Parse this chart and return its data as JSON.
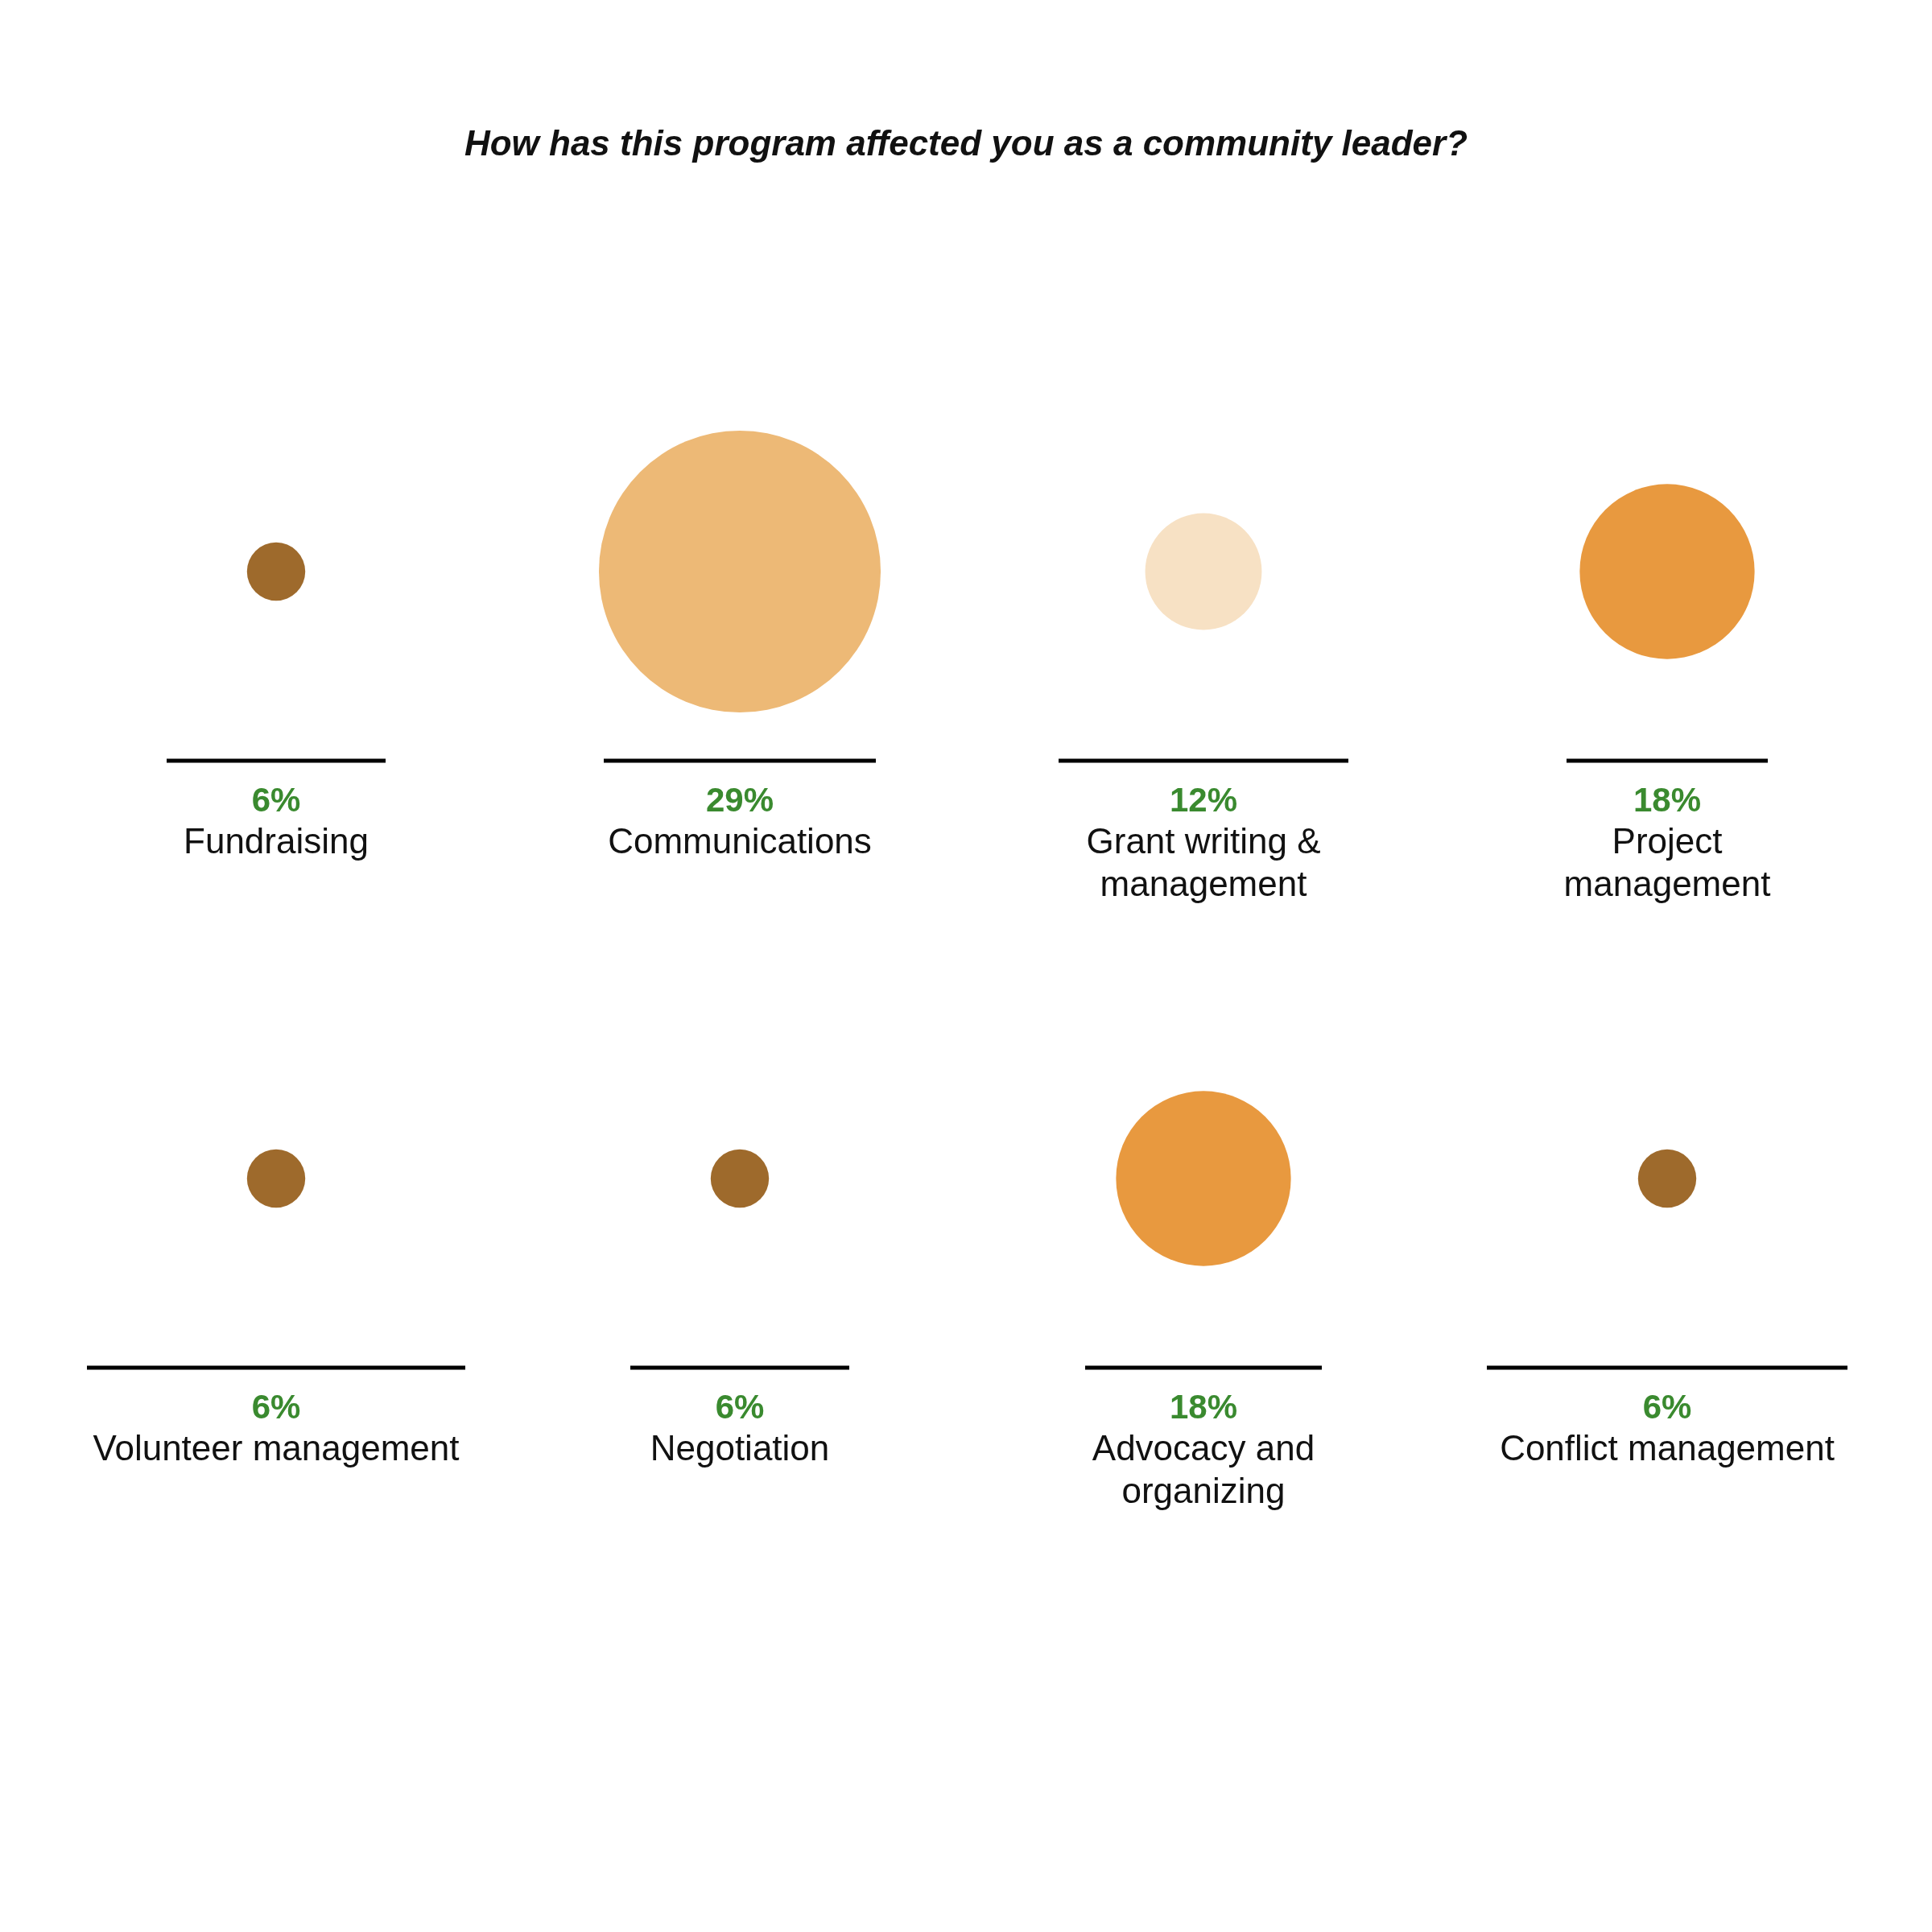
{
  "chart_data": {
    "type": "other",
    "title": "How has this program affected you as a community leader?",
    "categories": [
      "Fundraising",
      "Communications",
      "Grant writing &\nmanagement",
      "Project\nmanagement",
      "Volunteer management",
      "Negotiation",
      "Advocacy and\norganizing",
      "Conflict management"
    ],
    "values": [
      6,
      29,
      12,
      18,
      6,
      6,
      18,
      6
    ],
    "value_labels": [
      "6%",
      "29%",
      "12%",
      "18%",
      "6%",
      "6%",
      "18%",
      "6%"
    ],
    "colors": [
      "#9e6a2c",
      "#edb976",
      "#f7e1c4",
      "#e8993f",
      "#9e6a2c",
      "#9e6a2c",
      "#e8993f",
      "#9e6a2c"
    ]
  }
}
